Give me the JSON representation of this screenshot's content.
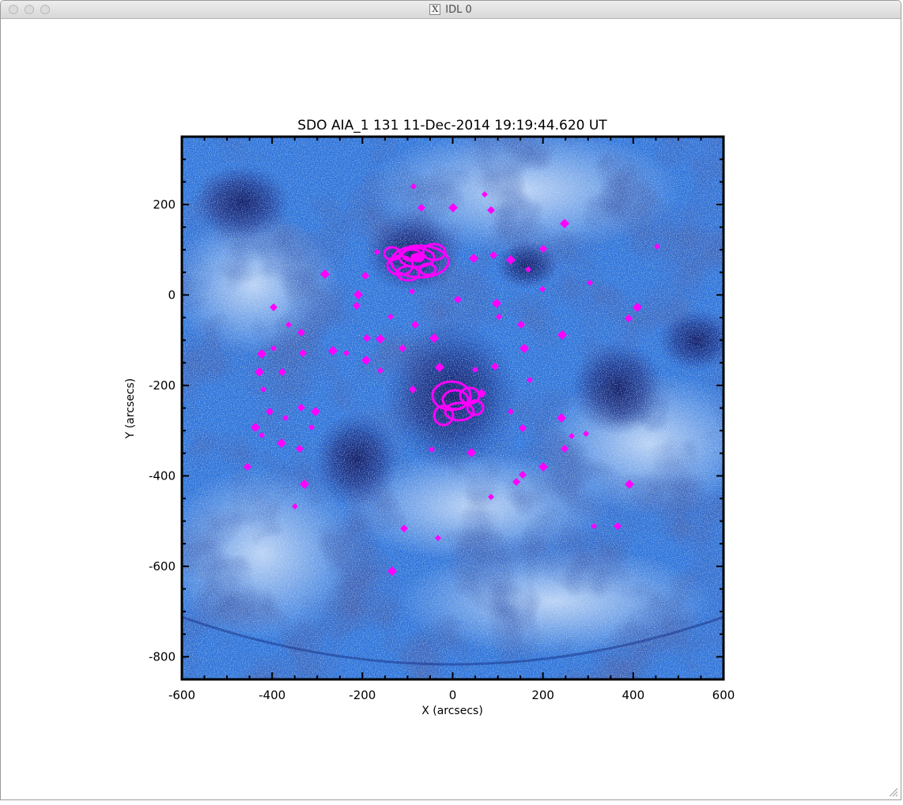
{
  "window": {
    "title": "IDL 0",
    "icon": "x11-icon"
  },
  "plot": {
    "title": "SDO AIA_1 131 11-Dec-2014 19:19:44.620 UT",
    "xlabel": "X (arcsecs)",
    "ylabel": "Y (arcsecs)",
    "xlim": [
      -600,
      600
    ],
    "ylim": [
      -850,
      350
    ],
    "xticks": [
      -600,
      -400,
      -200,
      0,
      200,
      400,
      600
    ],
    "yticks": [
      -800,
      -600,
      -400,
      -200,
      0,
      200
    ],
    "xtick_labels": [
      "-600",
      "-400",
      "-200",
      "0",
      "200",
      "400",
      "600"
    ],
    "ytick_labels": [
      "-800",
      "-600",
      "-400",
      "-200",
      "0",
      "200"
    ],
    "colors": {
      "image_base": "#2a6fd6",
      "image_bright": "#dce9fb",
      "image_dark": "#0b1a6a",
      "contour": "#ff00ff"
    }
  }
}
